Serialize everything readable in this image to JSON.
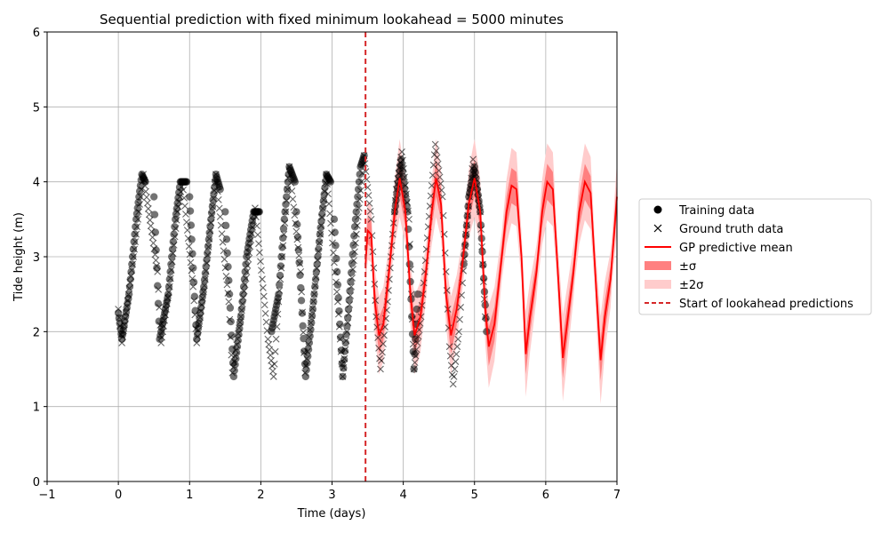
{
  "chart_data": {
    "type": "scatter",
    "title": "Sequential prediction with fixed minimum lookahead = 5000 minutes",
    "xlabel": "Time (days)",
    "ylabel": "Tide height (m)",
    "xlim": [
      -1,
      7
    ],
    "ylim": [
      0,
      6
    ],
    "xticks": [
      -1,
      0,
      1,
      2,
      3,
      4,
      5,
      6,
      7
    ],
    "yticks": [
      0,
      1,
      2,
      3,
      4,
      5,
      6
    ],
    "grid": true,
    "legend_position": "outside-right",
    "lookahead_start": 3.47,
    "colors": {
      "training": "#000000",
      "ground_truth": "#000000",
      "mean": "#ff0000",
      "band1": "#ff8080",
      "band2": "#ffcccc",
      "start_line": "#d62728"
    },
    "legend": [
      {
        "key": "training",
        "label": "Training data",
        "marker": "circle"
      },
      {
        "key": "ground_truth",
        "label": "Ground truth data",
        "marker": "x"
      },
      {
        "key": "mean",
        "label": "GP predictive mean",
        "marker": "line"
      },
      {
        "key": "band1",
        "label": "±σ",
        "marker": "patch"
      },
      {
        "key": "band2",
        "label": "±2σ",
        "marker": "patch-light"
      },
      {
        "key": "start_line",
        "label": "Start of lookahead predictions",
        "marker": "dashed"
      }
    ],
    "training_segments": [
      [
        [
          0.0,
          2.25
        ],
        [
          0.05,
          1.9
        ],
        [
          0.15,
          2.5
        ],
        [
          0.25,
          3.5
        ],
        [
          0.33,
          4.1
        ],
        [
          0.38,
          4.0
        ]
      ],
      [
        [
          0.5,
          3.8
        ],
        [
          0.58,
          1.9
        ],
        [
          0.7,
          2.5
        ],
        [
          0.8,
          3.5
        ],
        [
          0.87,
          4.0
        ],
        [
          0.96,
          4.0
        ]
      ],
      [
        [
          1.0,
          3.8
        ],
        [
          1.1,
          1.9
        ],
        [
          1.2,
          2.6
        ],
        [
          1.3,
          3.5
        ],
        [
          1.37,
          4.1
        ],
        [
          1.43,
          3.9
        ]
      ],
      [
        [
          1.5,
          3.6
        ],
        [
          1.62,
          1.4
        ],
        [
          1.72,
          2.2
        ],
        [
          1.8,
          3.0
        ],
        [
          1.9,
          3.6
        ],
        [
          1.98,
          3.6
        ]
      ],
      [
        [
          2.15,
          2.0
        ],
        [
          2.25,
          2.5
        ],
        [
          2.33,
          3.5
        ],
        [
          2.4,
          4.2
        ],
        [
          2.48,
          4.0
        ]
      ],
      [
        [
          2.5,
          3.6
        ],
        [
          2.63,
          1.4
        ],
        [
          2.73,
          2.3
        ],
        [
          2.83,
          3.3
        ],
        [
          2.92,
          4.1
        ],
        [
          2.98,
          4.0
        ]
      ],
      [
        [
          3.03,
          3.5
        ],
        [
          3.15,
          1.4
        ],
        [
          3.23,
          2.3
        ],
        [
          3.32,
          3.4
        ],
        [
          3.4,
          4.2
        ],
        [
          3.45,
          4.35
        ]
      ],
      [
        [
          3.88,
          3.6
        ],
        [
          3.97,
          4.3
        ],
        [
          4.06,
          3.6
        ],
        [
          4.15,
          1.5
        ],
        [
          4.2,
          2.5
        ]
      ],
      [
        [
          4.85,
          2.9
        ],
        [
          4.92,
          3.8
        ],
        [
          5.0,
          4.2
        ],
        [
          5.08,
          3.6
        ],
        [
          5.17,
          2.0
        ]
      ]
    ],
    "ground_truth_segments": [
      [
        [
          0.0,
          2.3
        ],
        [
          0.05,
          1.85
        ],
        [
          0.2,
          2.9
        ],
        [
          0.35,
          4.1
        ],
        [
          0.55,
          2.8
        ],
        [
          0.6,
          1.85
        ],
        [
          0.72,
          2.6
        ],
        [
          0.83,
          3.6
        ],
        [
          0.9,
          4.0
        ],
        [
          1.05,
          2.6
        ],
        [
          1.1,
          1.85
        ],
        [
          1.22,
          2.7
        ],
        [
          1.37,
          4.1
        ],
        [
          1.55,
          2.4
        ],
        [
          1.6,
          1.45
        ],
        [
          1.72,
          2.2
        ],
        [
          1.92,
          3.65
        ],
        [
          2.02,
          2.7
        ],
        [
          2.1,
          1.9
        ],
        [
          2.18,
          1.4
        ],
        [
          2.25,
          2.4
        ],
        [
          2.4,
          4.2
        ],
        [
          2.56,
          2.8
        ],
        [
          2.62,
          1.45
        ],
        [
          2.75,
          2.5
        ],
        [
          2.92,
          4.1
        ],
        [
          3.08,
          2.4
        ],
        [
          3.15,
          1.4
        ],
        [
          3.27,
          2.6
        ],
        [
          3.45,
          4.35
        ],
        [
          3.55,
          3.5
        ],
        [
          3.62,
          2.2
        ],
        [
          3.68,
          1.5
        ],
        [
          3.78,
          2.4
        ],
        [
          3.9,
          3.9
        ],
        [
          3.98,
          4.4
        ],
        [
          4.08,
          3.5
        ],
        [
          4.15,
          1.5
        ],
        [
          4.25,
          2.2
        ],
        [
          4.35,
          3.4
        ],
        [
          4.45,
          4.5
        ],
        [
          4.55,
          3.8
        ],
        [
          4.65,
          1.8
        ],
        [
          4.7,
          1.3
        ],
        [
          4.78,
          2.0
        ],
        [
          4.88,
          3.3
        ],
        [
          4.98,
          4.3
        ],
        [
          5.08,
          3.6
        ],
        [
          5.15,
          2.2
        ]
      ]
    ],
    "mean_line": [
      [
        3.47,
        2.9
      ],
      [
        3.5,
        3.35
      ],
      [
        3.55,
        3.3
      ],
      [
        3.6,
        2.4
      ],
      [
        3.66,
        1.95
      ],
      [
        3.72,
        2.1
      ],
      [
        3.8,
        2.8
      ],
      [
        3.88,
        3.6
      ],
      [
        3.95,
        4.05
      ],
      [
        4.03,
        3.6
      ],
      [
        4.1,
        2.5
      ],
      [
        4.16,
        1.95
      ],
      [
        4.24,
        2.2
      ],
      [
        4.32,
        2.8
      ],
      [
        4.4,
        3.6
      ],
      [
        4.46,
        4.05
      ],
      [
        4.53,
        3.7
      ],
      [
        4.6,
        2.5
      ],
      [
        4.67,
        1.95
      ],
      [
        4.75,
        2.3
      ],
      [
        4.83,
        2.9
      ],
      [
        4.92,
        3.7
      ],
      [
        5.0,
        4.05
      ],
      [
        5.08,
        3.6
      ],
      [
        5.15,
        2.3
      ],
      [
        5.2,
        1.8
      ],
      [
        5.28,
        2.1
      ],
      [
        5.36,
        2.8
      ],
      [
        5.45,
        3.6
      ],
      [
        5.52,
        3.95
      ],
      [
        5.59,
        3.9
      ],
      [
        5.66,
        3.0
      ],
      [
        5.72,
        1.7
      ],
      [
        5.78,
        2.2
      ],
      [
        5.87,
        2.8
      ],
      [
        5.95,
        3.6
      ],
      [
        6.02,
        4.0
      ],
      [
        6.1,
        3.9
      ],
      [
        6.17,
        2.8
      ],
      [
        6.24,
        1.65
      ],
      [
        6.3,
        2.1
      ],
      [
        6.39,
        2.8
      ],
      [
        6.47,
        3.6
      ],
      [
        6.55,
        4.0
      ],
      [
        6.63,
        3.85
      ],
      [
        6.7,
        2.7
      ],
      [
        6.77,
        1.62
      ],
      [
        6.83,
        2.2
      ],
      [
        6.91,
        2.7
      ],
      [
        7.0,
        3.8
      ]
    ],
    "sigma_level_1": 0.15,
    "sigma_level_2": 0.32
  }
}
